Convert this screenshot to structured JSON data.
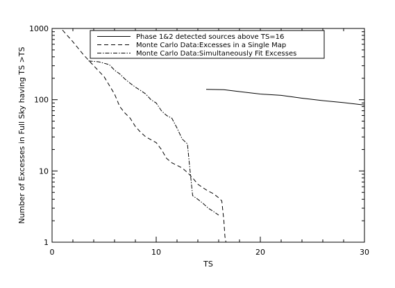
{
  "chart_data": {
    "type": "line",
    "title": "",
    "xlabel": "TS",
    "ylabel": "Number of Excesses in Full Sky having TS >TS",
    "xlim": [
      0,
      30
    ],
    "ylim": [
      1,
      1000
    ],
    "yscale": "log",
    "grid": false,
    "legend_position": "top-center",
    "x_ticks": [
      "0",
      "10",
      "20",
      "30"
    ],
    "y_ticks": [
      "1",
      "10",
      "100",
      "1000"
    ],
    "series": [
      {
        "name": "Phase 1&2  detected sources above TS=16",
        "style": "solid",
        "points": [
          [
            14.8,
            140
          ],
          [
            16.5,
            138
          ],
          [
            18,
            130
          ],
          [
            20,
            120
          ],
          [
            22,
            115
          ],
          [
            24,
            105
          ],
          [
            26,
            97
          ],
          [
            28,
            91
          ],
          [
            30,
            84
          ]
        ]
      },
      {
        "name": "Monte Carlo Data:Excesses in a Single Map",
        "style": "dashed",
        "points": [
          [
            1,
            950
          ],
          [
            2,
            650
          ],
          [
            3,
            430
          ],
          [
            4,
            300
          ],
          [
            5,
            210
          ],
          [
            6,
            120
          ],
          [
            6.5,
            80
          ],
          [
            7,
            65
          ],
          [
            7.5,
            55
          ],
          [
            8,
            42
          ],
          [
            8.5,
            35
          ],
          [
            9,
            30
          ],
          [
            10,
            25
          ],
          [
            10.5,
            20
          ],
          [
            11,
            15
          ],
          [
            11.5,
            13
          ],
          [
            12,
            12
          ],
          [
            12.5,
            11
          ],
          [
            13,
            9.5
          ],
          [
            13.5,
            8
          ],
          [
            14,
            6.5
          ],
          [
            14.5,
            5.8
          ],
          [
            15,
            5.2
          ],
          [
            15.5,
            4.8
          ],
          [
            16,
            4.2
          ],
          [
            16.3,
            3.8
          ],
          [
            16.5,
            2.0
          ],
          [
            16.6,
            1.2
          ],
          [
            16.7,
            1.0
          ]
        ]
      },
      {
        "name": "Monte Carlo Data:Simultaneously Fit Excesses",
        "style": "dashdot",
        "points": [
          [
            3.5,
            350
          ],
          [
            4.5,
            340
          ],
          [
            5.5,
            310
          ],
          [
            6,
            260
          ],
          [
            6.5,
            230
          ],
          [
            7,
            195
          ],
          [
            7.5,
            170
          ],
          [
            8,
            150
          ],
          [
            8.5,
            135
          ],
          [
            9,
            120
          ],
          [
            9.5,
            100
          ],
          [
            10,
            90
          ],
          [
            10.5,
            70
          ],
          [
            11,
            60
          ],
          [
            11.5,
            55
          ],
          [
            12,
            40
          ],
          [
            12.5,
            28
          ],
          [
            13,
            24
          ],
          [
            13.2,
            12
          ],
          [
            13.5,
            4.5
          ],
          [
            14,
            4.0
          ],
          [
            14.5,
            3.5
          ],
          [
            15,
            3.0
          ],
          [
            15.5,
            2.7
          ],
          [
            16,
            2.4
          ]
        ]
      }
    ]
  }
}
